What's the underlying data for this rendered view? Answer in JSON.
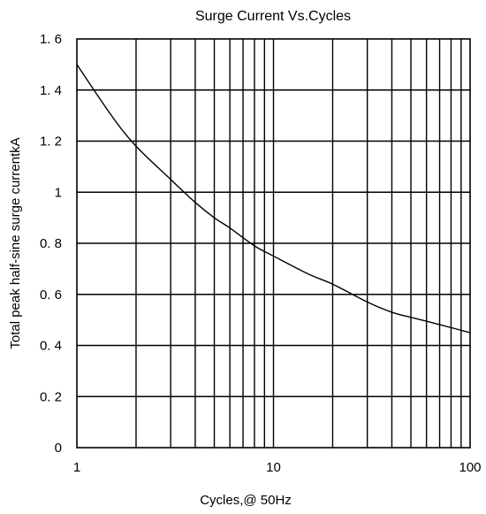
{
  "chart_data": {
    "type": "line",
    "title": "Surge Current  Vs.Cycles",
    "xlabel": "Cycles,@ 50Hz",
    "ylabel": "Total peak half-sine surge currentkA",
    "xscale": "log",
    "xlim": [
      1,
      100
    ],
    "ylim": [
      0,
      1.6
    ],
    "x_ticks": [
      1,
      10,
      100
    ],
    "x_tick_labels": [
      "1",
      "10",
      "100"
    ],
    "y_ticks": [
      0,
      0.2,
      0.4,
      0.6,
      0.8,
      1.0,
      1.2,
      1.4,
      1.6
    ],
    "y_tick_labels": [
      "0",
      "0. 2",
      "0. 4",
      "0. 6",
      "0. 8",
      "1",
      "1. 2",
      "1. 4",
      "1. 6"
    ],
    "grid": true,
    "legend": "none",
    "series": [
      {
        "x": [
          1,
          1.5,
          2,
          3,
          4,
          5,
          6,
          8,
          10,
          15,
          20,
          30,
          40,
          50,
          60,
          80,
          100
        ],
        "values": [
          1.5,
          1.3,
          1.18,
          1.05,
          0.96,
          0.9,
          0.86,
          0.79,
          0.75,
          0.68,
          0.64,
          0.57,
          0.53,
          0.51,
          0.495,
          0.47,
          0.45
        ]
      }
    ]
  }
}
